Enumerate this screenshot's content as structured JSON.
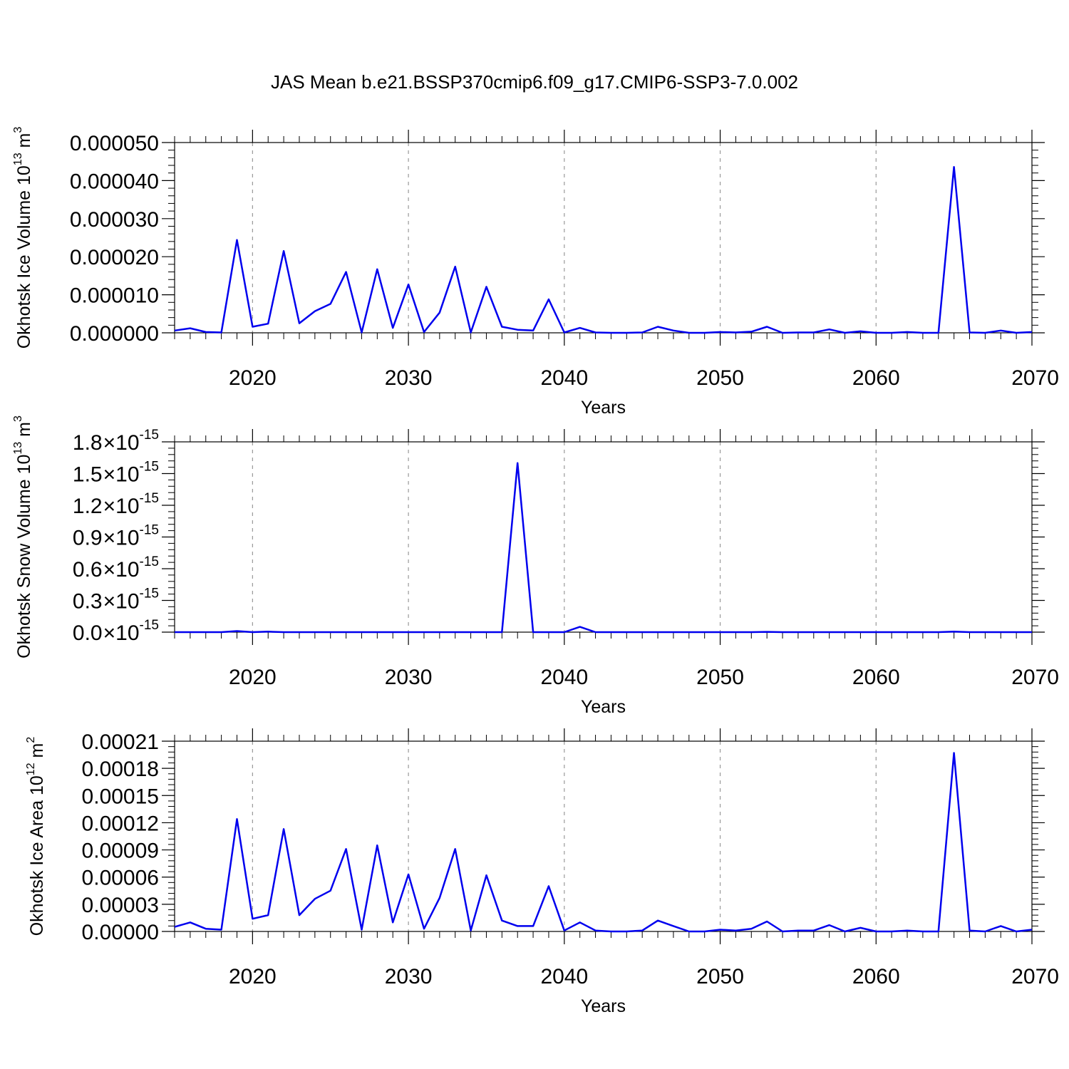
{
  "figure": {
    "title": "JAS Mean b.e21.BSSP370cmip6.f09_g17.CMIP6-SSP3-7.0.002"
  },
  "chart_data": [
    {
      "type": "line",
      "ylabel_main": "Okhotsk Ice Volume 10",
      "ylabel_exp": "13",
      "ylabel_unit": " m",
      "ylabel_unit_exp": "3",
      "xlabel": "Years",
      "xlim": [
        2015,
        2070
      ],
      "ylim": [
        0,
        5e-05
      ],
      "xticks": [
        2020,
        2030,
        2040,
        2050,
        2060,
        2070
      ],
      "xtick_labels": [
        "2020",
        "2030",
        "2040",
        "2050",
        "2060",
        "2070"
      ],
      "yticks": [
        0,
        1e-05,
        2e-05,
        3e-05,
        4e-05,
        5e-05
      ],
      "ytick_labels": [
        "0.000000",
        "0.000010",
        "0.000020",
        "0.000030",
        "0.000040",
        "0.000050"
      ],
      "y_tick_format": "plain",
      "grid": "x-dashed",
      "color": "#0000ee",
      "x": [
        2015,
        2016,
        2017,
        2018,
        2019,
        2020,
        2021,
        2022,
        2023,
        2024,
        2025,
        2026,
        2027,
        2028,
        2029,
        2030,
        2031,
        2032,
        2033,
        2034,
        2035,
        2036,
        2037,
        2038,
        2039,
        2040,
        2041,
        2042,
        2043,
        2044,
        2045,
        2046,
        2047,
        2048,
        2049,
        2050,
        2051,
        2052,
        2053,
        2054,
        2055,
        2056,
        2057,
        2058,
        2059,
        2060,
        2061,
        2062,
        2063,
        2064,
        2065,
        2066,
        2067,
        2068,
        2069,
        2070
      ],
      "values": [
        6e-07,
        1.2e-06,
        2e-07,
        1e-07,
        2.44e-05,
        1.6e-06,
        2.4e-06,
        2.15e-05,
        2.5e-06,
        5.7e-06,
        7.6e-06,
        1.6e-05,
        1e-07,
        1.67e-05,
        1.3e-06,
        1.27e-05,
        2e-07,
        5.3e-06,
        1.74e-05,
        1e-07,
        1.21e-05,
        1.6e-06,
        8e-07,
        6e-07,
        8.8e-06,
        1e-07,
        1.3e-06,
        1e-07,
        0,
        0,
        1e-07,
        1.6e-06,
        6e-07,
        0,
        0,
        2e-07,
        1e-07,
        3e-07,
        1.6e-06,
        0,
        1e-07,
        1e-07,
        9e-07,
        0,
        4e-07,
        0,
        0,
        2e-07,
        0,
        0,
        4.36e-05,
        1e-07,
        0,
        6e-07,
        0,
        2e-07
      ]
    },
    {
      "type": "line",
      "ylabel_main": "Okhotsk Snow Volume 10",
      "ylabel_exp": "13",
      "ylabel_unit": " m",
      "ylabel_unit_exp": "3",
      "xlabel": "Years",
      "xlim": [
        2015,
        2070
      ],
      "ylim": [
        0,
        1.8e-15
      ],
      "xticks": [
        2020,
        2030,
        2040,
        2050,
        2060,
        2070
      ],
      "xtick_labels": [
        "2020",
        "2030",
        "2040",
        "2050",
        "2060",
        "2070"
      ],
      "yticks": [
        0,
        3e-16,
        6e-16,
        9e-16,
        1.2e-15,
        1.5e-15,
        1.8e-15
      ],
      "ytick_labels": [
        "0.0",
        "0.3",
        "0.6",
        "0.9",
        "1.2",
        "1.5",
        "1.8"
      ],
      "ytick_times": "×",
      "ytick_base": "10",
      "ytick_exp": "-15",
      "y_tick_format": "sci",
      "grid": "x-dashed",
      "color": "#0000ee",
      "x": [
        2015,
        2016,
        2017,
        2018,
        2019,
        2020,
        2021,
        2022,
        2023,
        2024,
        2025,
        2026,
        2027,
        2028,
        2029,
        2030,
        2031,
        2032,
        2033,
        2034,
        2035,
        2036,
        2037,
        2038,
        2039,
        2040,
        2041,
        2042,
        2043,
        2044,
        2045,
        2046,
        2047,
        2048,
        2049,
        2050,
        2051,
        2052,
        2053,
        2054,
        2055,
        2056,
        2057,
        2058,
        2059,
        2060,
        2061,
        2062,
        2063,
        2064,
        2065,
        2066,
        2067,
        2068,
        2069,
        2070
      ],
      "values": [
        0,
        0,
        0,
        0,
        1e-17,
        0,
        5e-18,
        0,
        0,
        0,
        0,
        0,
        0,
        0,
        0,
        0,
        0,
        0,
        0,
        0,
        0,
        0,
        1.6e-15,
        0,
        0,
        0,
        5e-17,
        0,
        0,
        0,
        0,
        0,
        0,
        0,
        0,
        0,
        0,
        0,
        3e-18,
        0,
        0,
        0,
        0,
        0,
        0,
        0,
        0,
        0,
        0,
        0,
        5e-18,
        0,
        0,
        0,
        0,
        0
      ]
    },
    {
      "type": "line",
      "ylabel_main": "Okhotsk Ice Area 10",
      "ylabel_exp": "12",
      "ylabel_unit": " m",
      "ylabel_unit_exp": "2",
      "xlabel": "Years",
      "xlim": [
        2015,
        2070
      ],
      "ylim": [
        0,
        0.00021
      ],
      "xticks": [
        2020,
        2030,
        2040,
        2050,
        2060,
        2070
      ],
      "xtick_labels": [
        "2020",
        "2030",
        "2040",
        "2050",
        "2060",
        "2070"
      ],
      "yticks": [
        0,
        3e-05,
        6e-05,
        9e-05,
        0.00012,
        0.00015,
        0.00018,
        0.00021
      ],
      "ytick_labels": [
        "0.00000",
        "0.00003",
        "0.00006",
        "0.00009",
        "0.00012",
        "0.00015",
        "0.00018",
        "0.00021"
      ],
      "y_tick_format": "plain",
      "grid": "x-dashed",
      "color": "#0000ee",
      "x": [
        2015,
        2016,
        2017,
        2018,
        2019,
        2020,
        2021,
        2022,
        2023,
        2024,
        2025,
        2026,
        2027,
        2028,
        2029,
        2030,
        2031,
        2032,
        2033,
        2034,
        2035,
        2036,
        2037,
        2038,
        2039,
        2040,
        2041,
        2042,
        2043,
        2044,
        2045,
        2046,
        2047,
        2048,
        2049,
        2050,
        2051,
        2052,
        2053,
        2054,
        2055,
        2056,
        2057,
        2058,
        2059,
        2060,
        2061,
        2062,
        2063,
        2064,
        2065,
        2066,
        2067,
        2068,
        2069,
        2070
      ],
      "values": [
        5e-06,
        1e-05,
        3e-06,
        2e-06,
        0.000124,
        1.4e-05,
        1.8e-05,
        0.000113,
        1.8e-05,
        3.6e-05,
        4.5e-05,
        9.1e-05,
        2e-06,
        9.5e-05,
        1e-05,
        6.3e-05,
        3e-06,
        3.7e-05,
        9.1e-05,
        1e-06,
        6.2e-05,
        1.2e-05,
        6e-06,
        6e-06,
        5e-05,
        1e-06,
        1e-05,
        1e-06,
        0,
        0,
        1e-06,
        1.2e-05,
        6e-06,
        0,
        0,
        2e-06,
        1e-06,
        3e-06,
        1.1e-05,
        0,
        1e-06,
        1e-06,
        7e-06,
        0,
        4e-06,
        0,
        0,
        1e-06,
        0,
        0,
        0.000197,
        1e-06,
        0,
        6e-06,
        0,
        2e-06
      ]
    }
  ]
}
